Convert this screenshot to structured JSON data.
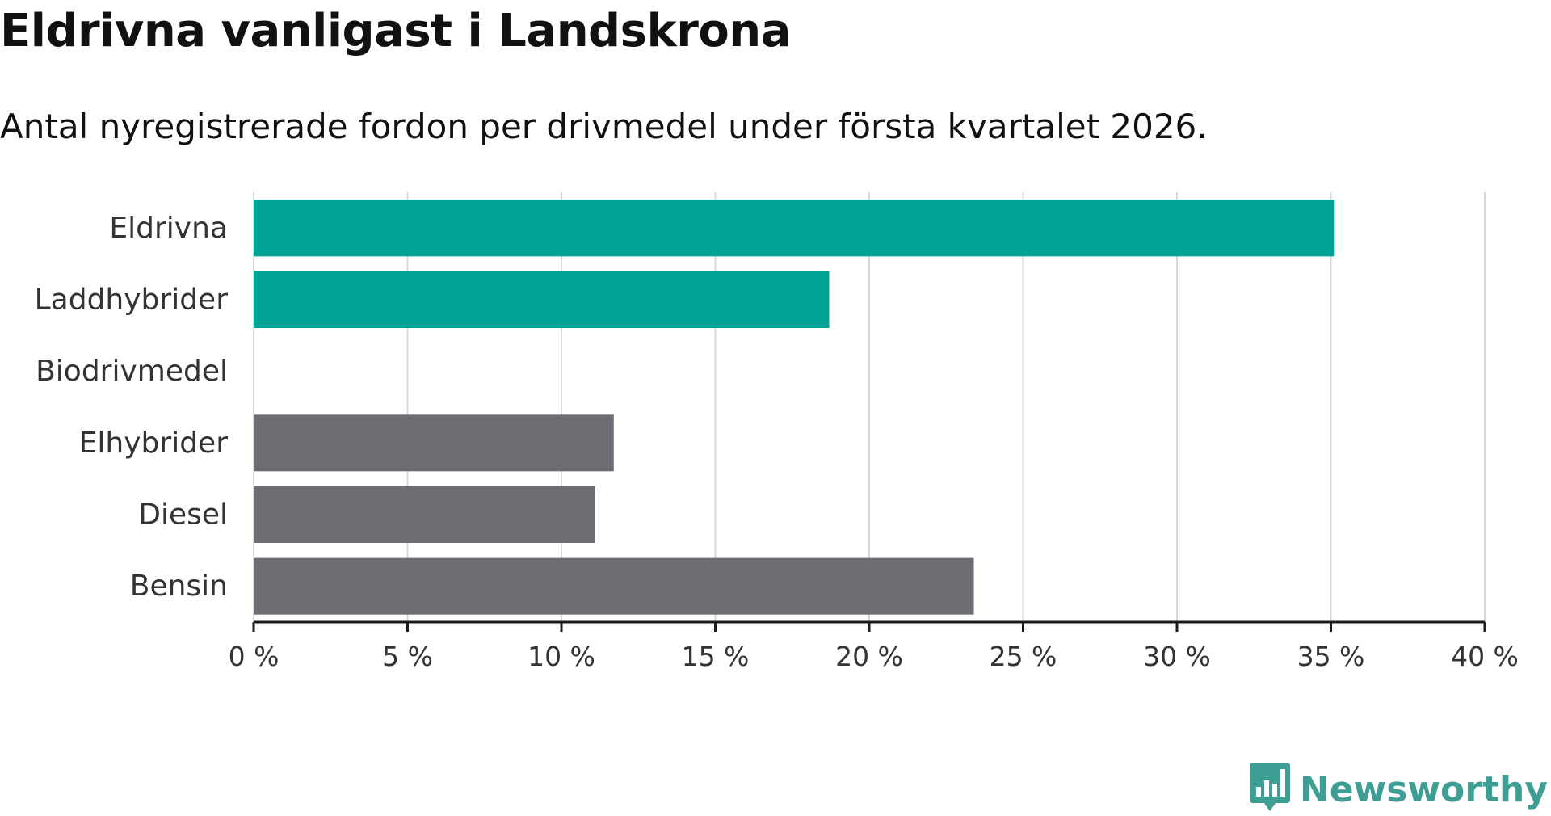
{
  "title": "Eldrivna vanligast i Landskrona",
  "subtitle": "Antal nyregistrerade fordon per drivmedel under första kvartalet 2026.",
  "brand": {
    "name": "Newsworthy",
    "color": "#3f9e94",
    "icon": "newsworthy-logo-icon"
  },
  "colors": {
    "highlight": "#00a398",
    "neutral": "#6e6d73",
    "grid": "#d9d9d9",
    "axis": "#1a1a1a"
  },
  "chart_data": {
    "type": "bar",
    "orientation": "horizontal",
    "categories": [
      "Eldrivna",
      "Laddhybrider",
      "Biodrivmedel",
      "Elhybrider",
      "Diesel",
      "Bensin"
    ],
    "values": [
      35.1,
      18.7,
      0,
      11.7,
      11.1,
      23.4
    ],
    "highlight": [
      true,
      true,
      true,
      false,
      false,
      false
    ],
    "xlim": [
      0,
      40
    ],
    "xticks": [
      0,
      5,
      10,
      15,
      20,
      25,
      30,
      35,
      40
    ],
    "tick_suffix": " %",
    "xlabel": "",
    "ylabel": "",
    "grid": true
  }
}
